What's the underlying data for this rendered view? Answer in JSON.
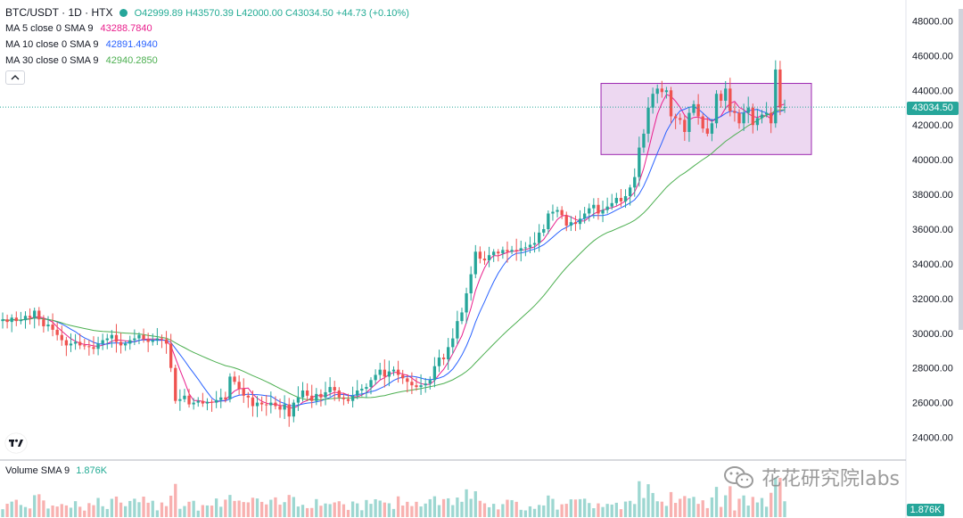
{
  "header": {
    "symbol": "BTC/USDT · 1D · HTX",
    "open": "O42999.89",
    "high": "H43570.39",
    "low": "L42000.00",
    "close": "C43034.50",
    "change": "+44.73 (+0.10%)"
  },
  "indicators": [
    {
      "label": "MA 5 close 0 SMA 9",
      "value": "43288.7840",
      "color": "#e91e8c"
    },
    {
      "label": "MA 10 close 0 SMA 9",
      "value": "42891.4940",
      "color": "#2962ff"
    },
    {
      "label": "MA 30 close 0 SMA 9",
      "value": "42940.2850",
      "color": "#4caf50"
    }
  ],
  "collapse_icon": "chevron-up-icon",
  "volume": {
    "label": "Volume SMA 9",
    "value": "1.876K",
    "tag": "1.876K"
  },
  "last_price_tag": "43034.50",
  "watermark": "花花研究院labs",
  "colors": {
    "up": "#26a69a",
    "down": "#ef5350",
    "box_fill": "#e1bee7",
    "box_stroke": "#9c27b0"
  },
  "chart_data": {
    "type": "candlestick",
    "title": "",
    "y_axis": {
      "min": 23000,
      "max": 49000,
      "ticks": [
        "24000.00",
        "26000.00",
        "28000.00",
        "30000.00",
        "32000.00",
        "34000.00",
        "36000.00",
        "38000.00",
        "40000.00",
        "42000.00",
        "44000.00",
        "46000.00",
        "48000.00"
      ]
    },
    "grid": false,
    "close": [
      30800,
      30650,
      30900,
      30700,
      30750,
      31000,
      30900,
      31300,
      30800,
      30400,
      30500,
      30200,
      29900,
      29600,
      29300,
      29400,
      29500,
      29300,
      29250,
      29200,
      29100,
      29400,
      29600,
      29700,
      29900,
      29500,
      29300,
      29400,
      29600,
      29700,
      29900,
      29650,
      29500,
      29600,
      29700,
      29650,
      29400,
      28000,
      26100,
      26200,
      26400,
      25900,
      26000,
      26100,
      25950,
      26050,
      26000,
      26150,
      26300,
      26200,
      27500,
      27200,
      26800,
      26400,
      26300,
      25800,
      26000,
      25900,
      25850,
      26000,
      25800,
      25600,
      25900,
      25200,
      26000,
      26300,
      26700,
      26400,
      26100,
      26500,
      26300,
      26600,
      26900,
      26700,
      26300,
      26200,
      26100,
      26400,
      26700,
      26800,
      26900,
      27300,
      27600,
      27900,
      27500,
      27800,
      27900,
      27600,
      27400,
      27200,
      27000,
      26900,
      27000,
      27100,
      27300,
      28100,
      28600,
      28500,
      29200,
      29700,
      30700,
      31200,
      32300,
      33400,
      34700,
      34300,
      34200,
      34500,
      34700,
      34600,
      34800,
      34700,
      34800,
      34750,
      34900,
      34950,
      35100,
      35200,
      35800,
      36000,
      36900,
      37000,
      37100,
      36800,
      36200,
      36400,
      36300,
      36600,
      36900,
      37200,
      37400,
      36900,
      37100,
      37300,
      37500,
      37800,
      37600,
      37900,
      38400,
      39000,
      40700,
      41500,
      43000,
      43800,
      44100,
      43900,
      44000,
      42500,
      42400,
      42300,
      41600,
      42700,
      43200,
      42500,
      41800,
      41500,
      42100,
      43800,
      43400,
      44100,
      42800,
      42700,
      42100,
      42700,
      43000,
      42000,
      42400,
      42600,
      42700,
      42100,
      45200,
      43000,
      43034
    ],
    "series": [
      {
        "name": "MA 5 close 0 SMA 9"
      },
      {
        "name": "MA 10 close 0 SMA 9"
      },
      {
        "name": "MA 30 close 0 SMA 9"
      }
    ],
    "annotation": {
      "type": "rectangle",
      "y_range": [
        40300,
        44400
      ],
      "covers_last_candles": 41
    },
    "volume_unit": "K",
    "last_price": 43034.5
  }
}
